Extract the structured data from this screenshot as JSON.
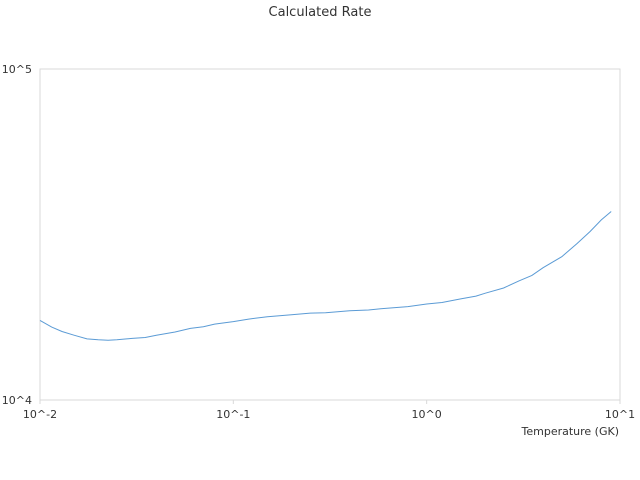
{
  "chart_data": {
    "type": "line",
    "title": "Calculated Rate",
    "xlabel": "Temperature (GK)",
    "ylabel": "",
    "x_scale": "log",
    "y_scale": "log",
    "xlim": [
      0.01,
      10
    ],
    "ylim": [
      10000,
      100000
    ],
    "grid": false,
    "legend": "none",
    "x_ticks": [
      {
        "value": 0.01,
        "label": "10^-2"
      },
      {
        "value": 0.1,
        "label": "10^-1"
      },
      {
        "value": 1,
        "label": "10^0"
      },
      {
        "value": 10,
        "label": "10^1"
      }
    ],
    "y_ticks": [
      {
        "value": 10000,
        "label": "10^4"
      },
      {
        "value": 100000,
        "label": "10^5"
      }
    ],
    "colors": {
      "series": "#5b9bd5",
      "axis": "#d9d9d9",
      "text": "#333333"
    },
    "series": [
      {
        "x": [
          0.01,
          0.0115,
          0.013,
          0.015,
          0.0175,
          0.02,
          0.0225,
          0.025,
          0.03,
          0.035,
          0.04,
          0.05,
          0.06,
          0.07,
          0.08,
          0.1,
          0.12,
          0.15,
          0.2,
          0.25,
          0.3,
          0.4,
          0.5,
          0.6,
          0.8,
          1.0,
          1.2,
          1.5,
          1.8,
          2.0,
          2.5,
          3.0,
          3.5,
          4.0,
          5.0,
          6.0,
          7.0,
          8.0,
          9.0
        ],
        "y": [
          17400,
          16600,
          16100,
          15700,
          15300,
          15200,
          15150,
          15200,
          15350,
          15450,
          15700,
          16050,
          16450,
          16650,
          16950,
          17250,
          17550,
          17850,
          18100,
          18300,
          18350,
          18600,
          18700,
          18900,
          19150,
          19500,
          19700,
          20200,
          20600,
          21000,
          21800,
          22900,
          23800,
          25100,
          27100,
          29700,
          32300,
          35000,
          37100
        ]
      }
    ]
  }
}
